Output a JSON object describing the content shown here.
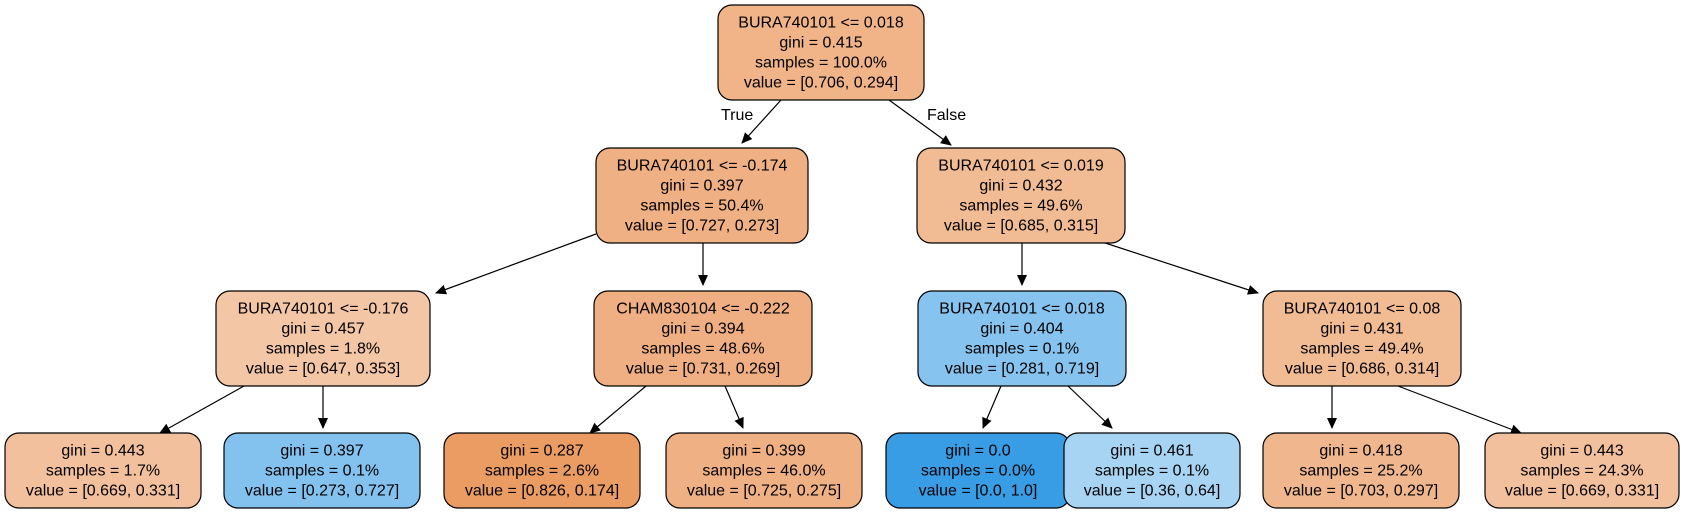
{
  "colors": {
    "class0_strong": "#e58139",
    "class1_strong": "#399de5"
  },
  "nodes": [
    {
      "id": "n0",
      "lines": [
        "BURA740101 <= 0.018",
        "gini = 0.415",
        "samples = 100.0%",
        "value = [0.706, 0.294]"
      ],
      "fill": "#f1b489"
    },
    {
      "id": "n1",
      "lines": [
        "BURA740101 <= -0.174",
        "gini = 0.397",
        "samples = 50.4%",
        "value = [0.727, 0.273]"
      ],
      "fill": "#efb083"
    },
    {
      "id": "n2",
      "lines": [
        "BURA740101 <= 0.019",
        "gini = 0.432",
        "samples = 49.6%",
        "value = [0.685, 0.315]"
      ],
      "fill": "#f1bb94"
    },
    {
      "id": "n3",
      "lines": [
        "BURA740101 <= -0.176",
        "gini = 0.457",
        "samples = 1.8%",
        "value = [0.647, 0.353]"
      ],
      "fill": "#f3c6a5"
    },
    {
      "id": "n4",
      "lines": [
        "CHAM830104 <= -0.222",
        "gini = 0.394",
        "samples = 48.6%",
        "value = [0.731, 0.269]"
      ],
      "fill": "#efaf82"
    },
    {
      "id": "n5",
      "lines": [
        "BURA740101 <= 0.018",
        "gini = 0.404",
        "samples = 0.1%",
        "value = [0.281, 0.719]"
      ],
      "fill": "#86c3ef"
    },
    {
      "id": "n6",
      "lines": [
        "BURA740101 <= 0.08",
        "gini = 0.431",
        "samples = 49.4%",
        "value = [0.686, 0.314]"
      ],
      "fill": "#f1bb94"
    },
    {
      "id": "n7",
      "lines": [
        "gini = 0.443",
        "samples = 1.7%",
        "value = [0.669, 0.331]"
      ],
      "fill": "#f2c09c"
    },
    {
      "id": "n8",
      "lines": [
        "gini = 0.397",
        "samples = 0.1%",
        "value = [0.273, 0.727]"
      ],
      "fill": "#83c2ef"
    },
    {
      "id": "n9",
      "lines": [
        "gini = 0.287",
        "samples = 2.6%",
        "value = [0.826, 0.174]"
      ],
      "fill": "#ea9c63"
    },
    {
      "id": "n10",
      "lines": [
        "gini = 0.399",
        "samples = 46.0%",
        "value = [0.725, 0.275]"
      ],
      "fill": "#efb184"
    },
    {
      "id": "n11",
      "lines": [
        "gini = 0.0",
        "samples = 0.0%",
        "value = [0.0, 1.0]"
      ],
      "fill": "#399de5"
    },
    {
      "id": "n12",
      "lines": [
        "gini = 0.461",
        "samples = 0.1%",
        "value = [0.36, 0.64]"
      ],
      "fill": "#a8d4f4"
    },
    {
      "id": "n13",
      "lines": [
        "gini = 0.418",
        "samples = 25.2%",
        "value = [0.703, 0.297]"
      ],
      "fill": "#f0b68d"
    },
    {
      "id": "n14",
      "lines": [
        "gini = 0.443",
        "samples = 24.3%",
        "value = [0.669, 0.331]"
      ],
      "fill": "#f2c09c"
    }
  ],
  "edges": [
    {
      "from": "n0",
      "to": "n1",
      "label": "True"
    },
    {
      "from": "n0",
      "to": "n2",
      "label": "False"
    },
    {
      "from": "n1",
      "to": "n3",
      "label": ""
    },
    {
      "from": "n1",
      "to": "n4",
      "label": ""
    },
    {
      "from": "n2",
      "to": "n5",
      "label": ""
    },
    {
      "from": "n2",
      "to": "n6",
      "label": ""
    },
    {
      "from": "n3",
      "to": "n7",
      "label": ""
    },
    {
      "from": "n3",
      "to": "n8",
      "label": ""
    },
    {
      "from": "n4",
      "to": "n9",
      "label": ""
    },
    {
      "from": "n4",
      "to": "n10",
      "label": ""
    },
    {
      "from": "n5",
      "to": "n11",
      "label": ""
    },
    {
      "from": "n5",
      "to": "n12",
      "label": ""
    },
    {
      "from": "n6",
      "to": "n13",
      "label": ""
    },
    {
      "from": "n6",
      "to": "n14",
      "label": ""
    }
  ]
}
